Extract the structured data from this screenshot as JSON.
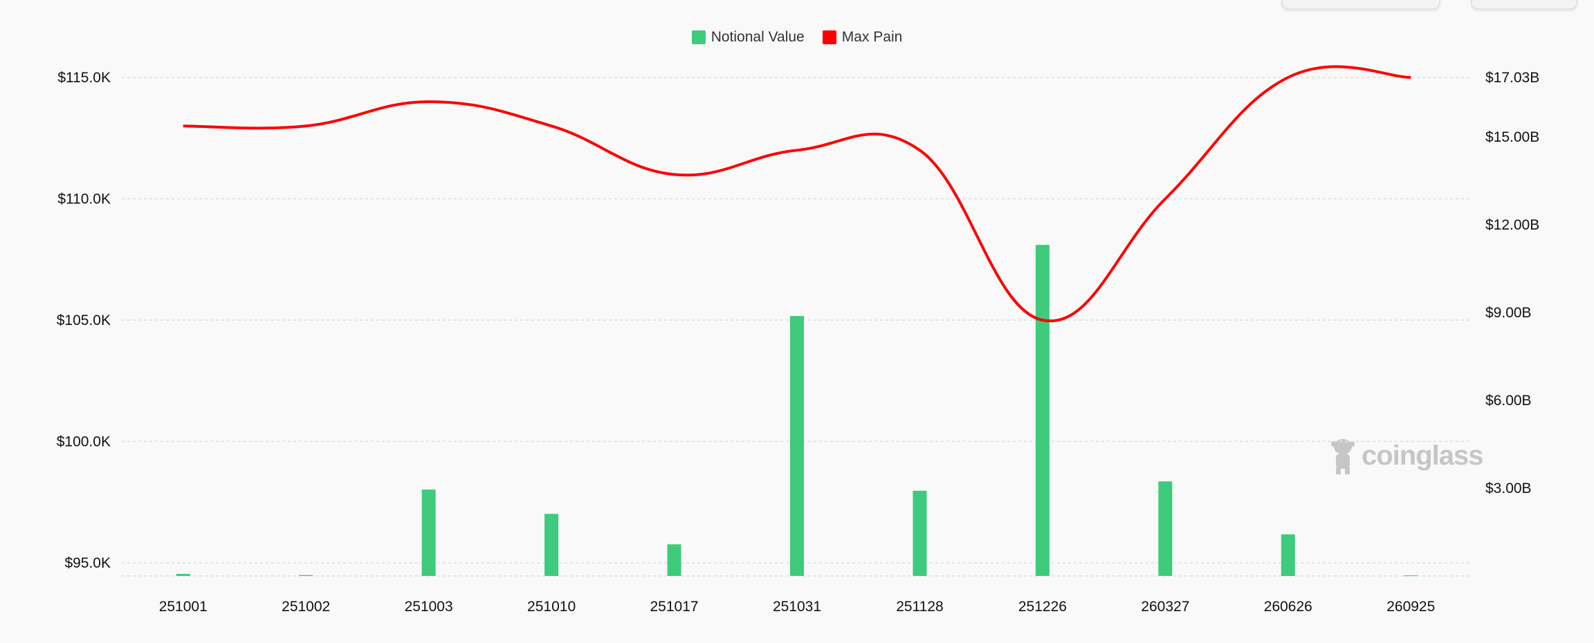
{
  "watermark": "coinglass",
  "legend": [
    {
      "label": "Notional Value",
      "color": "#3ecb7c"
    },
    {
      "label": "Max Pain",
      "color": "#ff0000"
    }
  ],
  "chart_data": {
    "type": "bar+line",
    "categories": [
      "251001",
      "251002",
      "251003",
      "251010",
      "251017",
      "251031",
      "251128",
      "251226",
      "260327",
      "260626",
      "260925"
    ],
    "series": [
      {
        "name": "Notional Value",
        "type": "bar",
        "axis": "right",
        "color": "#3ecb7c",
        "values": [
          0.07,
          0.03,
          2.95,
          2.12,
          1.08,
          8.88,
          2.91,
          11.31,
          3.23,
          1.42,
          0.02
        ]
      },
      {
        "name": "Max Pain",
        "type": "line",
        "axis": "left",
        "color": "#ff0000",
        "smooth": true,
        "values": [
          113000,
          113000,
          114000,
          113000,
          111000,
          112000,
          112000,
          105000,
          110000,
          115000,
          115000
        ]
      }
    ],
    "left_axis": {
      "ticks": [
        "$95.0K",
        "$100.0K",
        "$105.0K",
        "$110.0K",
        "$115.0K"
      ],
      "tick_values": [
        95000,
        100000,
        105000,
        110000,
        115000
      ],
      "range": [
        94460,
        115000
      ]
    },
    "right_axis": {
      "ticks": [
        "$3.00B",
        "$6.00B",
        "$9.00B",
        "$12.00B",
        "$15.00B",
        "$17.03B"
      ],
      "tick_values": [
        3,
        6,
        9,
        12,
        15,
        17.03
      ],
      "range": [
        0,
        17.03
      ],
      "unit": "B USD"
    },
    "grid": true,
    "legend_position": "top-center"
  }
}
